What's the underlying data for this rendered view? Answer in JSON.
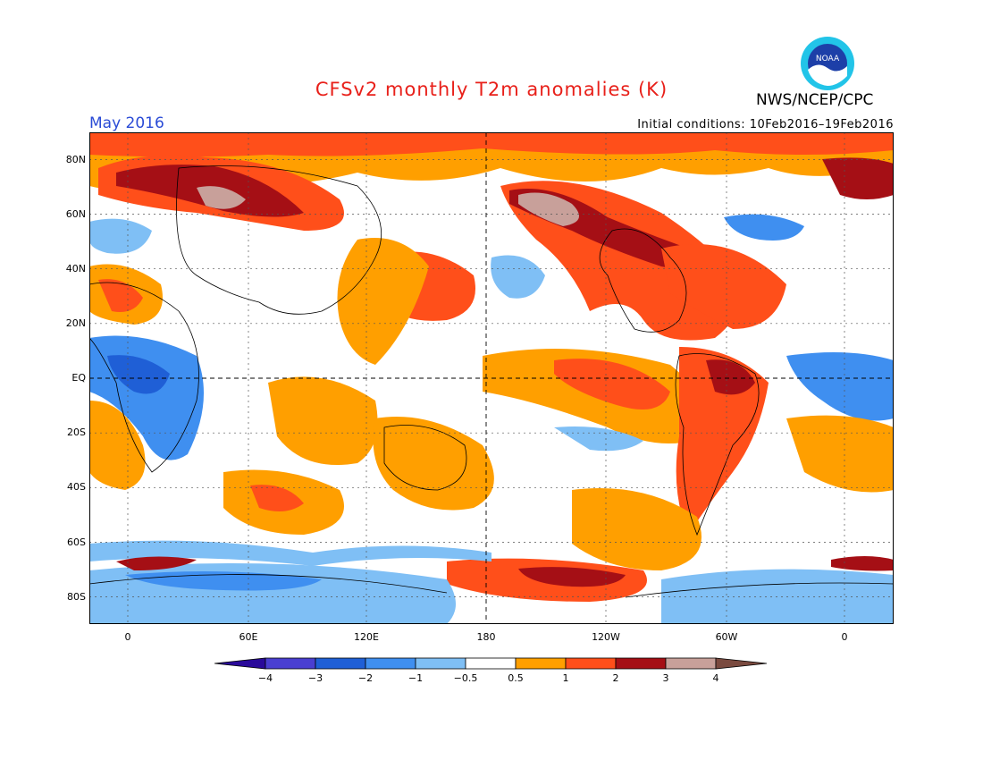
{
  "title": "CFSv2 monthly T2m anomalies (K)",
  "organization": "NWS/NCEP/CPC",
  "logo_text": "NOAA",
  "month": "May 2016",
  "initial_conditions": "Initial conditions: 10Feb2016–19Feb2016",
  "lat_labels": [
    "80N",
    "60N",
    "40N",
    "20N",
    "EQ",
    "20S",
    "40S",
    "60S",
    "80S"
  ],
  "lon_labels": [
    "0",
    "60E",
    "120E",
    "180",
    "120W",
    "60W",
    "0"
  ],
  "colorbar": {
    "labels": [
      "−4",
      "−3",
      "−2",
      "−1",
      "−0.5",
      "0.5",
      "1",
      "2",
      "3",
      "4"
    ],
    "colors": [
      "#2a0a9a",
      "#4a3fd1",
      "#1f5fd6",
      "#3f8ff0",
      "#7fbff5",
      "#ffffff",
      "#ff9f00",
      "#ff4f1a",
      "#a50f15",
      "#c8a09a",
      "#7a4a3f"
    ]
  },
  "colors": {
    "title": "#e8201a",
    "month": "#2a4bd6",
    "warm1": "#ff9f00",
    "warm2": "#ff4f1a",
    "warm3": "#a50f15",
    "warm4": "#c8a09a",
    "cool1": "#7fbff5",
    "cool2": "#3f8ff0",
    "cool3": "#1f5fd6"
  }
}
